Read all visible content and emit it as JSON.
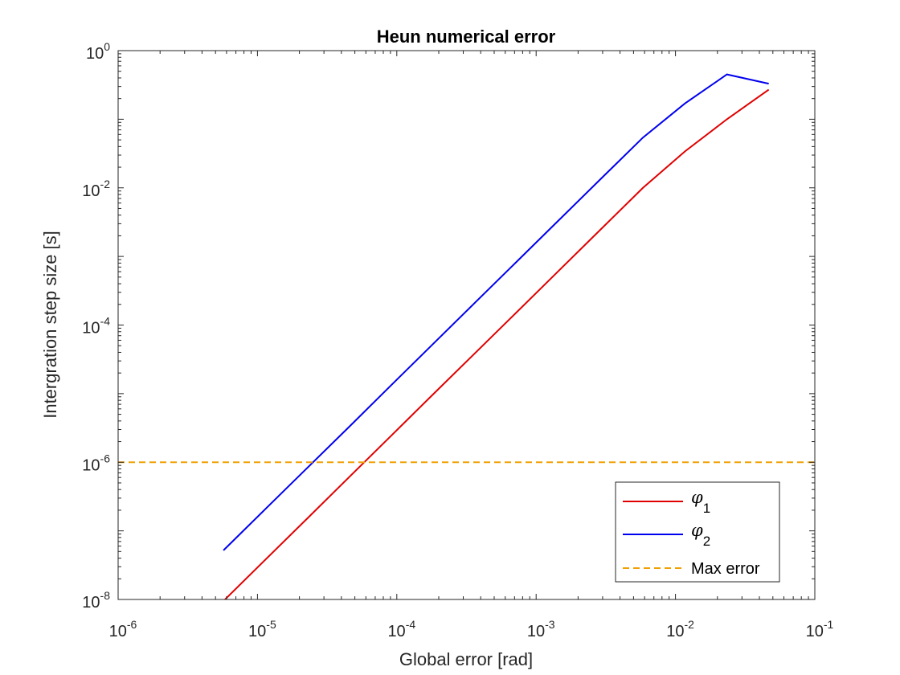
{
  "chart_data": {
    "type": "line",
    "title": "Heun numerical error",
    "xlabel": "Global error [rad]",
    "ylabel": "Intergration step size [s]",
    "xscale": "log",
    "yscale": "log",
    "xlim": [
      1e-06,
      0.1
    ],
    "ylim": [
      1e-08,
      1
    ],
    "x_ticks": [
      {
        "value": 1e-06,
        "base": "10",
        "exp": "-6"
      },
      {
        "value": 1e-05,
        "base": "10",
        "exp": "-5"
      },
      {
        "value": 0.0001,
        "base": "10",
        "exp": "-4"
      },
      {
        "value": 0.001,
        "base": "10",
        "exp": "-3"
      },
      {
        "value": 0.01,
        "base": "10",
        "exp": "-2"
      },
      {
        "value": 0.1,
        "base": "10",
        "exp": "-1"
      }
    ],
    "y_ticks": [
      {
        "value": 1e-08,
        "base": "10",
        "exp": "-8"
      },
      {
        "value": 1e-06,
        "base": "10",
        "exp": "-6"
      },
      {
        "value": 0.0001,
        "base": "10",
        "exp": "-4"
      },
      {
        "value": 0.01,
        "base": "10",
        "exp": "-2"
      },
      {
        "value": 1,
        "base": "10",
        "exp": "0"
      }
    ],
    "grid": false,
    "legend_position": "bottom-right",
    "series": [
      {
        "name": "φ",
        "subscript": "1",
        "color": "#e00000",
        "dash": "solid",
        "x": [
          5.7e-06,
          1.14e-05,
          2.28e-05,
          4.56e-05,
          9.12e-05,
          0.000182,
          0.000365,
          0.00073,
          0.00146,
          0.00292,
          0.00584,
          0.0117,
          0.0234,
          0.0467
        ],
        "y": [
          9.5e-09,
          3.81e-08,
          1.52e-07,
          6.1e-07,
          2.44e-06,
          9.77e-06,
          3.91e-05,
          0.000156,
          0.000625,
          0.0025,
          0.01,
          0.034,
          0.1,
          0.27
        ]
      },
      {
        "name": "φ",
        "subscript": "2",
        "color": "#0000ee",
        "dash": "solid",
        "x": [
          5.7e-06,
          1.14e-05,
          2.28e-05,
          4.56e-05,
          9.12e-05,
          0.000182,
          0.000365,
          0.00073,
          0.00146,
          0.00292,
          0.00584,
          0.0117,
          0.0234,
          0.0467
        ],
        "y": [
          5.2e-08,
          2.08e-07,
          8.3e-07,
          3.3e-06,
          1.33e-05,
          5.3e-05,
          0.000213,
          0.00085,
          0.0034,
          0.0136,
          0.054,
          0.17,
          0.45,
          0.33
        ]
      },
      {
        "name": "Max error",
        "color": "#f0a000",
        "dash": "dashed",
        "x": [
          1e-06,
          0.1
        ],
        "y": [
          1e-06,
          1e-06
        ]
      }
    ]
  }
}
